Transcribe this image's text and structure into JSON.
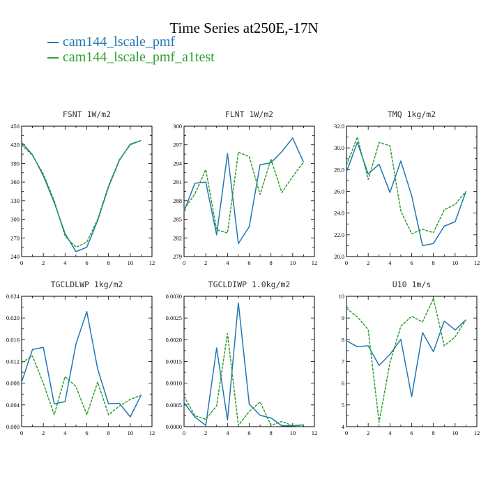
{
  "figure": {
    "title": "Time Series at250E,-17N",
    "legend": [
      {
        "name": "cam144_lscale_pmf",
        "color": "#1f77b4",
        "dash": "solid"
      },
      {
        "name": "cam144_lscale_pmf_a1test",
        "color": "#2ca02c",
        "dash": "dashed"
      }
    ]
  },
  "chart_data": [
    {
      "type": "line",
      "title": "FSNT   1W/m2",
      "x": [
        0,
        1,
        2,
        3,
        4,
        5,
        6,
        7,
        8,
        9,
        10,
        11
      ],
      "xlim": [
        0,
        12
      ],
      "xticks": [
        0,
        2,
        4,
        6,
        8,
        10,
        12
      ],
      "xtick_labels": [
        "0",
        "2",
        "4",
        "6",
        "8",
        "10",
        "12"
      ],
      "ylim": [
        240,
        450
      ],
      "yticks": [
        240,
        270,
        300,
        330,
        360,
        390,
        420,
        450
      ],
      "ytick_labels": [
        "240",
        "270",
        "300",
        "330",
        "360",
        "390",
        "420",
        "450"
      ],
      "series": [
        {
          "name": "cam144_lscale_pmf",
          "values": [
            424,
            404,
            370,
            327,
            277,
            248,
            255,
            298,
            352,
            395,
            421,
            427
          ]
        },
        {
          "name": "cam144_lscale_pmf_a1test",
          "values": [
            420,
            403,
            373,
            330,
            273,
            255,
            263,
            300,
            354,
            396,
            420,
            427
          ]
        }
      ]
    },
    {
      "type": "line",
      "title": "FLNT   1W/m2",
      "x": [
        0,
        1,
        2,
        3,
        4,
        5,
        6,
        7,
        8,
        9,
        10,
        11
      ],
      "xlim": [
        0,
        12
      ],
      "xticks": [
        0,
        2,
        4,
        6,
        8,
        10,
        12
      ],
      "xtick_labels": [
        "0",
        "2",
        "4",
        "6",
        "8",
        "10",
        "12"
      ],
      "ylim": [
        279,
        300
      ],
      "yticks": [
        279,
        282,
        285,
        288,
        291,
        294,
        297,
        300
      ],
      "ytick_labels": [
        "279",
        "282",
        "285",
        "288",
        "291",
        "294",
        "297",
        "300"
      ],
      "series": [
        {
          "name": "cam144_lscale_pmf",
          "values": [
            286.3,
            290.8,
            291.0,
            282.5,
            295.6,
            281.1,
            283.8,
            293.8,
            294.1,
            295.9,
            298.1,
            294.2
          ]
        },
        {
          "name": "cam144_lscale_pmf_a1test",
          "values": [
            286.6,
            289.1,
            293.0,
            283.3,
            282.8,
            295.8,
            295.1,
            289.0,
            294.7,
            289.3,
            291.9,
            294.2
          ]
        }
      ]
    },
    {
      "type": "line",
      "title": "TMQ   1kg/m2",
      "x": [
        0,
        1,
        2,
        3,
        4,
        5,
        6,
        7,
        8,
        9,
        10,
        11
      ],
      "xlim": [
        0,
        12
      ],
      "xticks": [
        0,
        2,
        4,
        6,
        8,
        10,
        12
      ],
      "xtick_labels": [
        "0",
        "2",
        "4",
        "6",
        "8",
        "10",
        "12"
      ],
      "ylim": [
        20.0,
        32.0
      ],
      "yticks": [
        20,
        22,
        24,
        26,
        28,
        30,
        32
      ],
      "ytick_labels": [
        "20.0",
        "22.0",
        "24.0",
        "26.0",
        "28.0",
        "30.0",
        "32.0"
      ],
      "series": [
        {
          "name": "cam144_lscale_pmf",
          "values": [
            27.8,
            30.5,
            27.6,
            28.5,
            25.9,
            28.8,
            25.6,
            21.0,
            21.2,
            22.8,
            23.2,
            26.0
          ]
        },
        {
          "name": "cam144_lscale_pmf_a1test",
          "values": [
            28.4,
            31.0,
            27.1,
            30.5,
            30.2,
            24.2,
            22.1,
            22.5,
            22.2,
            24.3,
            24.8,
            26.0
          ]
        }
      ]
    },
    {
      "type": "line",
      "title": "TGCLDLWP   1kg/m2",
      "x": [
        0,
        1,
        2,
        3,
        4,
        5,
        6,
        7,
        8,
        9,
        10,
        11
      ],
      "xlim": [
        0,
        12
      ],
      "xticks": [
        0,
        2,
        4,
        6,
        8,
        10,
        12
      ],
      "xtick_labels": [
        "0",
        "2",
        "4",
        "6",
        "8",
        "10",
        "12"
      ],
      "ylim": [
        0.0,
        0.024
      ],
      "yticks": [
        0,
        0.004,
        0.008,
        0.012,
        0.016,
        0.02,
        0.024
      ],
      "ytick_labels": [
        "0.000",
        "0.004",
        "0.008",
        "0.012",
        "0.016",
        "0.020",
        "0.024"
      ],
      "series": [
        {
          "name": "cam144_lscale_pmf",
          "values": [
            0.0082,
            0.0142,
            0.0146,
            0.0042,
            0.0046,
            0.0152,
            0.0212,
            0.0106,
            0.0042,
            0.0043,
            0.0018,
            0.0058
          ]
        },
        {
          "name": "cam144_lscale_pmf_a1test",
          "values": [
            0.0118,
            0.013,
            0.008,
            0.0022,
            0.0092,
            0.0074,
            0.0022,
            0.0082,
            0.0022,
            0.0038,
            0.005,
            0.0058
          ]
        }
      ]
    },
    {
      "type": "line",
      "title": "TGCLDIWP   1.0kg/m2",
      "x": [
        0,
        1,
        2,
        3,
        4,
        5,
        6,
        7,
        8,
        9,
        10,
        11
      ],
      "xlim": [
        0,
        12
      ],
      "xticks": [
        0,
        2,
        4,
        6,
        8,
        10,
        12
      ],
      "xtick_labels": [
        "0",
        "2",
        "4",
        "6",
        "8",
        "10",
        "12"
      ],
      "ylim": [
        0.0,
        0.003
      ],
      "yticks": [
        0,
        0.0005,
        0.001,
        0.0015,
        0.002,
        0.0025,
        0.003
      ],
      "ytick_labels": [
        "0.0000",
        "0.0005",
        "0.0010",
        "0.0015",
        "0.0020",
        "0.0025",
        "0.0030"
      ],
      "series": [
        {
          "name": "cam144_lscale_pmf",
          "values": [
            0.00055,
            0.00022,
            3e-05,
            0.00181,
            0.00015,
            0.00285,
            0.00052,
            0.00026,
            0.0002,
            2e-05,
            2e-05,
            4e-05
          ]
        },
        {
          "name": "cam144_lscale_pmf_a1test",
          "values": [
            0.0007,
            0.00025,
            0.00017,
            0.00048,
            0.00214,
            3e-05,
            0.00035,
            0.00057,
            3e-05,
            0.00012,
            2e-05,
            4e-05
          ]
        }
      ]
    },
    {
      "type": "line",
      "title": "U10   1m/s",
      "x": [
        0,
        1,
        2,
        3,
        4,
        5,
        6,
        7,
        8,
        9,
        10,
        11
      ],
      "xlim": [
        0,
        12
      ],
      "xticks": [
        0,
        2,
        4,
        6,
        8,
        10,
        12
      ],
      "xtick_labels": [
        "0",
        "2",
        "4",
        "6",
        "8",
        "10",
        "12"
      ],
      "ylim": [
        4,
        10
      ],
      "yticks": [
        4,
        5,
        6,
        7,
        8,
        9,
        10
      ],
      "ytick_labels": [
        "4",
        "5",
        "6",
        "7",
        "8",
        "9",
        "10"
      ],
      "series": [
        {
          "name": "cam144_lscale_pmf",
          "values": [
            7.95,
            7.68,
            7.72,
            6.82,
            7.32,
            8.02,
            5.38,
            8.33,
            7.45,
            8.86,
            8.45,
            8.92
          ]
        },
        {
          "name": "cam144_lscale_pmf_a1test",
          "values": [
            9.45,
            9.05,
            8.47,
            4.2,
            6.95,
            8.62,
            9.08,
            8.82,
            9.9,
            7.72,
            8.13,
            8.92
          ]
        }
      ]
    }
  ]
}
